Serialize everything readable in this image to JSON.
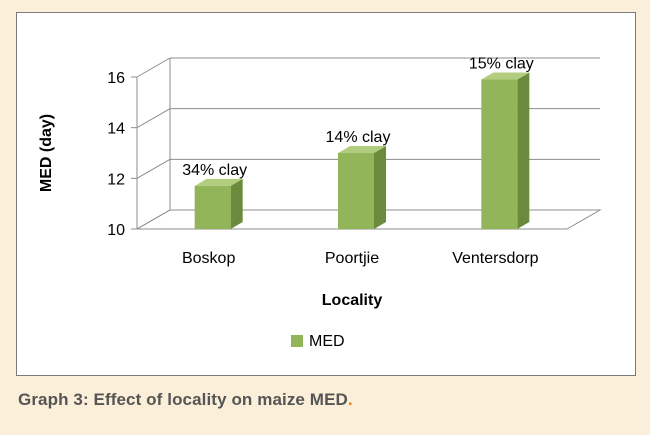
{
  "chart_data": {
    "type": "bar",
    "three_d": true,
    "categories": [
      "Boskop",
      "Poortjie",
      "Ventersdorp"
    ],
    "series": [
      {
        "name": "MED",
        "values": [
          11.7,
          13.0,
          15.9
        ],
        "color": "#93b55a",
        "data_labels": [
          "34% clay",
          "14% clay",
          "15% clay"
        ]
      }
    ],
    "xlabel": "Locality",
    "ylabel": "MED (day)",
    "ylim": [
      10,
      16
    ],
    "yticks": [
      10,
      12,
      14,
      16
    ],
    "grid": true,
    "legend": "bottom"
  },
  "caption": {
    "text": "Graph 3: Effect of locality on maize MED",
    "end_mark": "."
  },
  "colors": {
    "page_background": "#fbefd9",
    "bar_front": "#93b55a",
    "bar_side": "#6b8a3c",
    "bar_top": "#b3cd7f",
    "caption_text": "#555555",
    "caption_accent": "#e87a1e"
  }
}
